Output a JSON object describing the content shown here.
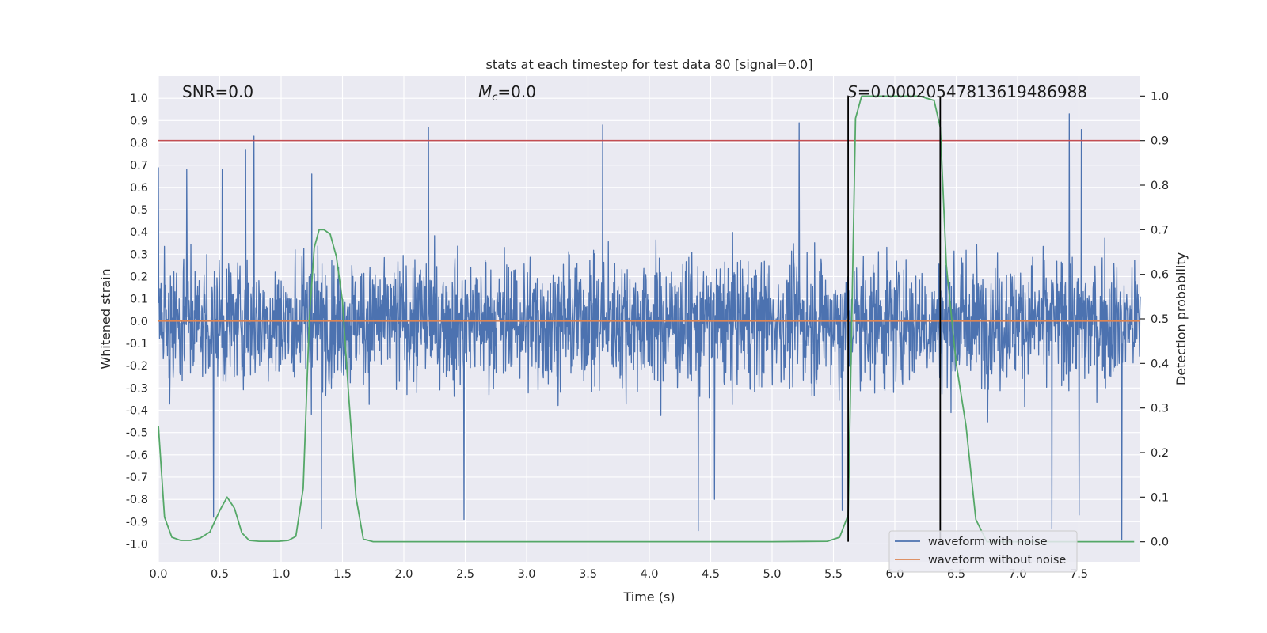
{
  "chart_data": {
    "type": "line",
    "title": "stats at each timestep for test data 80 [signal=0.0]",
    "xlabel": "Time (s)",
    "ylabel": "Whitened strain",
    "y2label": "Detection probability",
    "xlim": [
      0.0,
      8.0
    ],
    "ylim": [
      -1.08,
      1.1
    ],
    "y2lim": [
      -0.045,
      1.045
    ],
    "xticks": [
      "0.0",
      "0.5",
      "1.0",
      "1.5",
      "2.0",
      "2.5",
      "3.0",
      "3.5",
      "4.0",
      "4.5",
      "5.0",
      "5.5",
      "6.0",
      "6.5",
      "7.0",
      "7.5"
    ],
    "yticks": [
      "1.0",
      "0.9",
      "0.8",
      "0.7",
      "0.6",
      "0.5",
      "0.4",
      "0.3",
      "0.2",
      "0.1",
      "0.0",
      "-0.1",
      "-0.2",
      "-0.3",
      "-0.4",
      "-0.5",
      "-0.6",
      "-0.7",
      "-0.8",
      "-0.9",
      "-1.0"
    ],
    "y2ticks": [
      "1.0",
      "0.9",
      "0.8",
      "0.7",
      "0.6",
      "0.5",
      "0.4",
      "0.3",
      "0.2",
      "0.1",
      "0.0"
    ],
    "grid": true,
    "legend_position": "lower-right",
    "annotations": {
      "snr": "SNR=0.0",
      "mc": "=0.0",
      "mc_symbol": "M",
      "mc_sub": "c",
      "s": "=0.00020547813619486988",
      "s_symbol": "S"
    },
    "threshold": {
      "y2": 0.9,
      "color": "#c44e52"
    },
    "vlines_x": [
      5.62,
      6.37
    ],
    "series": [
      {
        "name": "waveform with noise",
        "color": "#4c72b0",
        "axis": "left",
        "envelope": "noise, roughly within ±0.45 with peaks up to about 0.93 and down to about -0.98",
        "peaks": [
          {
            "x": 0.0,
            "y": 0.69
          },
          {
            "x": 0.23,
            "y": 0.68
          },
          {
            "x": 0.52,
            "y": 0.68
          },
          {
            "x": 0.71,
            "y": 0.77
          },
          {
            "x": 0.78,
            "y": 0.83
          },
          {
            "x": 1.25,
            "y": 0.66
          },
          {
            "x": 2.2,
            "y": 0.87
          },
          {
            "x": 3.62,
            "y": 0.88
          },
          {
            "x": 5.22,
            "y": 0.89
          },
          {
            "x": 7.42,
            "y": 0.93
          },
          {
            "x": 7.52,
            "y": 0.86
          }
        ],
        "troughs": [
          {
            "x": 0.45,
            "y": -0.88
          },
          {
            "x": 1.33,
            "y": -0.93
          },
          {
            "x": 2.49,
            "y": -0.89
          },
          {
            "x": 4.4,
            "y": -0.94
          },
          {
            "x": 4.53,
            "y": -0.8
          },
          {
            "x": 5.57,
            "y": -0.85
          },
          {
            "x": 7.28,
            "y": -0.93
          },
          {
            "x": 7.5,
            "y": -0.87
          },
          {
            "x": 7.85,
            "y": -0.98
          }
        ]
      },
      {
        "name": "waveform without noise",
        "color": "#dd8452",
        "axis": "left",
        "x": [
          0.0,
          8.0
        ],
        "y": [
          0.0,
          0.0
        ]
      },
      {
        "name": "",
        "color": "#55a868",
        "axis": "right",
        "x": [
          0.0,
          0.05,
          0.11,
          0.18,
          0.26,
          0.34,
          0.42,
          0.5,
          0.56,
          0.62,
          0.68,
          0.74,
          0.82,
          0.9,
          0.98,
          1.06,
          1.12,
          1.18,
          1.23,
          1.27,
          1.31,
          1.35,
          1.4,
          1.45,
          1.5,
          1.55,
          1.61,
          1.67,
          1.75,
          2.0,
          3.0,
          4.0,
          5.0,
          5.45,
          5.55,
          5.62,
          5.68,
          5.73,
          5.8,
          6.0,
          6.2,
          6.32,
          6.37,
          6.42,
          6.5,
          6.58,
          6.66,
          6.75,
          7.0,
          7.5,
          7.95
        ],
        "y": [
          0.26,
          0.055,
          0.01,
          0.003,
          0.003,
          0.008,
          0.022,
          0.07,
          0.1,
          0.075,
          0.02,
          0.003,
          0.001,
          0.001,
          0.001,
          0.003,
          0.012,
          0.12,
          0.5,
          0.66,
          0.7,
          0.7,
          0.69,
          0.64,
          0.54,
          0.33,
          0.1,
          0.006,
          0.0,
          0.0,
          0.0,
          0.0,
          0.0,
          0.001,
          0.01,
          0.06,
          0.95,
          1.0,
          1.0,
          1.0,
          1.0,
          0.99,
          0.93,
          0.62,
          0.4,
          0.26,
          0.05,
          0.0,
          0.0,
          0.0,
          0.0
        ]
      }
    ]
  }
}
